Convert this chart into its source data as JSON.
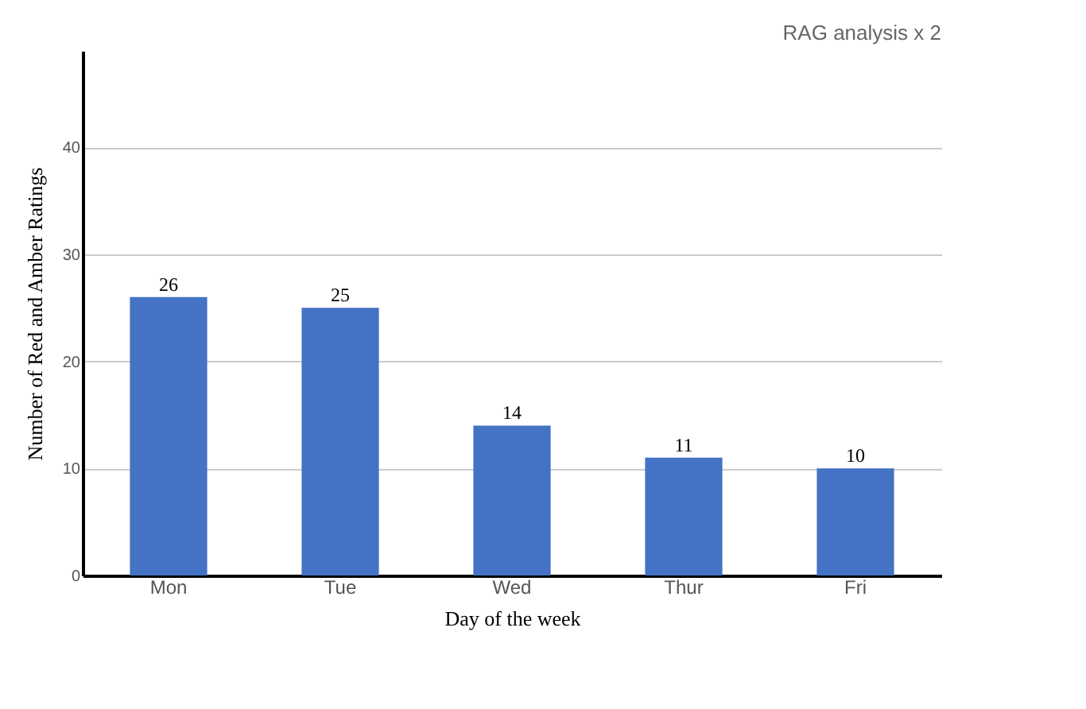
{
  "chart_data": {
    "type": "bar",
    "title": "RAG analysis x 2",
    "xlabel": "Day of the week",
    "ylabel": "Number of Red and Amber Ratings",
    "categories": [
      "Mon",
      "Tue",
      "Wed",
      "Thur",
      "Fri"
    ],
    "values": [
      26,
      25,
      14,
      11,
      10
    ],
    "color": "#4472c4",
    "ylim": [
      0,
      49
    ],
    "yticks": [
      0,
      10,
      20,
      30,
      40
    ],
    "grid": "y",
    "data_labels": true
  }
}
